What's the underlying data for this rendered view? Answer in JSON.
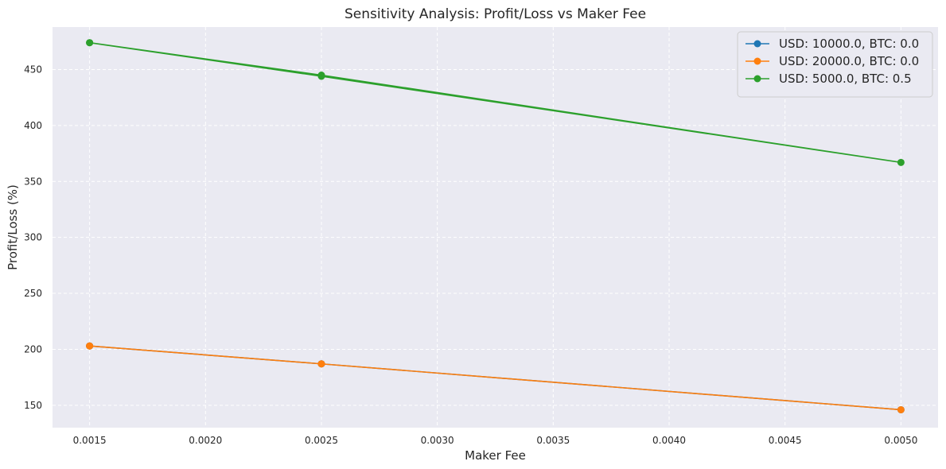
{
  "chart_data": {
    "type": "line",
    "title": "Sensitivity Analysis: Profit/Loss vs Maker Fee",
    "xlabel": "Maker Fee",
    "ylabel": "Profit/Loss (%)",
    "xlim": [
      0.00134,
      0.00516
    ],
    "ylim": [
      130,
      488
    ],
    "x_ticks": [
      "0.0015",
      "0.0020",
      "0.0025",
      "0.0030",
      "0.0035",
      "0.0040",
      "0.0045",
      "0.0050"
    ],
    "x_tick_values": [
      0.0015,
      0.002,
      0.0025,
      0.003,
      0.0035,
      0.004,
      0.0045,
      0.005
    ],
    "y_ticks": [
      "150",
      "200",
      "250",
      "300",
      "350",
      "400",
      "450"
    ],
    "y_tick_values": [
      150,
      200,
      250,
      300,
      350,
      400,
      450
    ],
    "grid": true,
    "grid_style": "dashed",
    "legend_position": "top-right",
    "background_color": "#eaeaf2",
    "series": [
      {
        "name": "USD: 10000.0, BTC: 0.0",
        "color": "#1f77b4",
        "points": [
          [
            0.0015,
            203
          ],
          [
            0.0025,
            187
          ],
          [
            0.005,
            146
          ],
          [
            0.0025,
            187
          ],
          [
            0.0015,
            203
          ]
        ]
      },
      {
        "name": "USD: 20000.0, BTC: 0.0",
        "color": "#ff7f0e",
        "points": [
          [
            0.0015,
            203
          ],
          [
            0.0025,
            187
          ],
          [
            0.005,
            146
          ],
          [
            0.0025,
            187
          ],
          [
            0.0015,
            203
          ]
        ]
      },
      {
        "name": "USD: 5000.0, BTC: 0.5",
        "color": "#2ca02c",
        "points": [
          [
            0.0015,
            474
          ],
          [
            0.0025,
            444
          ],
          [
            0.005,
            367
          ],
          [
            0.0025,
            445
          ],
          [
            0.0015,
            474
          ]
        ]
      }
    ]
  }
}
